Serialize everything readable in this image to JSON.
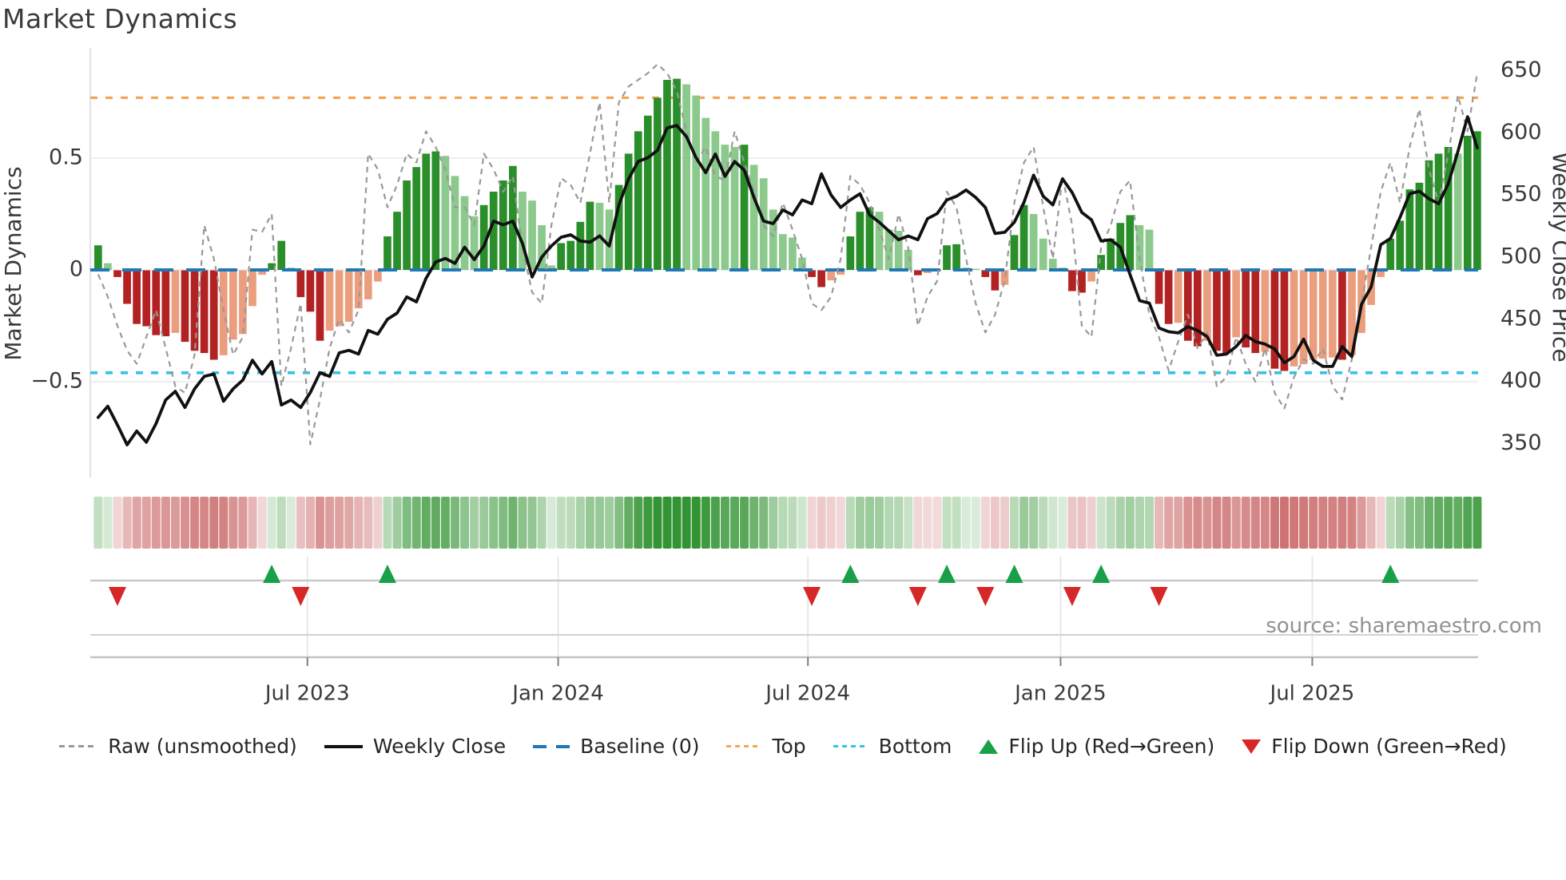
{
  "header": {
    "title": "Market Dynamics"
  },
  "chart": {
    "source": "source: sharemaestro.com",
    "left_axis": {
      "label": "Market Dynamics",
      "ticks": [
        {
          "label": "0.5",
          "value": 0.5
        },
        {
          "label": "0",
          "value": 0
        },
        {
          "label": "−0.5",
          "value": -0.5
        }
      ],
      "range": [
        -0.95,
        0.99
      ]
    },
    "right_axis": {
      "label": "Weekly Close Price",
      "ticks": [
        {
          "label": "650",
          "value": 650
        },
        {
          "label": "600",
          "value": 600
        },
        {
          "label": "550",
          "value": 550
        },
        {
          "label": "500",
          "value": 500
        },
        {
          "label": "450",
          "value": 450
        },
        {
          "label": "400",
          "value": 400
        },
        {
          "label": "350",
          "value": 350
        }
      ],
      "range": [
        333,
        661
      ]
    },
    "x_axis": {
      "ticks": [
        {
          "label": "Jul 2023",
          "week": 22.1
        },
        {
          "label": "Jan 2024",
          "week": 48.1
        },
        {
          "label": "Jul 2024",
          "week": 74.0
        },
        {
          "label": "Jan 2025",
          "week": 100.2
        },
        {
          "label": "Jul 2025",
          "week": 126.3
        }
      ]
    },
    "ref_lines": {
      "baseline": {
        "value": 0,
        "color": "#1f77b4"
      },
      "top": {
        "value": 0.77,
        "color": "#f2a65a"
      },
      "bottom": {
        "value": -0.46,
        "color": "#35c2e6"
      }
    },
    "palette": {
      "bar_up_strong": "#2a8f2a",
      "bar_up_soft": "#8cc98c",
      "bar_down_strong": "#b22222",
      "bar_down_soft": "#eb9e7e",
      "price": "#111111",
      "raw": "#999999",
      "flip_up": "#18a048",
      "flip_down": "#d62828",
      "heat_pos_rgb": "34,139,34",
      "heat_neg_rgb": "178,34,34",
      "grid": "#e9e9f0",
      "panel_line": "#c9c9c9",
      "tick_text": "#3a3a3a"
    }
  },
  "chart_data": {
    "type": "bar+line",
    "title": "Market Dynamics",
    "weeks": 144,
    "ylabel_left": "Market Dynamics",
    "ylabel_right": "Weekly Close Price",
    "grid": true,
    "legend_position": "bottom",
    "series": [
      {
        "name": "Market Dynamics (smoothed bars)",
        "values": [
          0.11,
          0.03,
          -0.03,
          -0.15,
          -0.24,
          -0.25,
          -0.29,
          -0.295,
          -0.28,
          -0.32,
          -0.36,
          -0.37,
          -0.4,
          -0.38,
          -0.31,
          -0.285,
          -0.16,
          -0.02,
          0.03,
          0.13,
          0.01,
          -0.12,
          -0.185,
          -0.315,
          -0.27,
          -0.25,
          -0.23,
          -0.17,
          -0.13,
          -0.05,
          0.15,
          0.26,
          0.4,
          0.46,
          0.52,
          0.53,
          0.51,
          0.42,
          0.33,
          0.24,
          0.29,
          0.35,
          0.4,
          0.465,
          0.35,
          0.31,
          0.2,
          0.02,
          0.12,
          0.13,
          0.215,
          0.305,
          0.3,
          0.27,
          0.38,
          0.52,
          0.62,
          0.69,
          0.77,
          0.85,
          0.855,
          0.83,
          0.78,
          0.68,
          0.62,
          0.56,
          0.55,
          0.56,
          0.47,
          0.41,
          0.27,
          0.16,
          0.145,
          0.055,
          -0.03,
          -0.075,
          -0.045,
          -0.02,
          0.15,
          0.26,
          0.28,
          0.26,
          0.18,
          0.175,
          0.09,
          -0.022,
          -0.012,
          -0.005,
          0.11,
          0.115,
          0.01,
          0.005,
          -0.03,
          -0.09,
          -0.065,
          0.156,
          0.29,
          0.25,
          0.14,
          0.05,
          0.01,
          -0.093,
          -0.1,
          -0.05,
          0.067,
          0.14,
          0.21,
          0.245,
          0.2,
          0.18,
          -0.15,
          -0.24,
          -0.235,
          -0.315,
          -0.34,
          -0.315,
          -0.36,
          -0.37,
          -0.3,
          -0.345,
          -0.37,
          -0.365,
          -0.44,
          -0.45,
          -0.43,
          -0.42,
          -0.4,
          -0.395,
          -0.39,
          -0.4,
          -0.38,
          -0.28,
          -0.155,
          -0.03,
          0.14,
          0.22,
          0.36,
          0.39,
          0.49,
          0.52,
          0.55,
          0.52,
          0.6,
          0.62
        ]
      },
      {
        "name": "Raw (unsmoothed)",
        "values": [
          -0.02,
          -0.12,
          -0.25,
          -0.36,
          -0.42,
          -0.3,
          -0.18,
          -0.35,
          -0.52,
          -0.55,
          -0.38,
          0.2,
          0.05,
          -0.18,
          -0.38,
          -0.3,
          0.18,
          0.17,
          0.25,
          -0.52,
          -0.35,
          -0.15,
          -0.78,
          -0.58,
          -0.35,
          -0.22,
          -0.28,
          -0.18,
          0.52,
          0.45,
          0.28,
          0.38,
          0.52,
          0.48,
          0.62,
          0.55,
          0.45,
          0.28,
          0.28,
          0.2,
          0.52,
          0.45,
          0.35,
          0.42,
          0.1,
          -0.1,
          -0.15,
          0.2,
          0.41,
          0.38,
          0.3,
          0.52,
          0.75,
          0.3,
          0.75,
          0.82,
          0.85,
          0.88,
          0.92,
          0.88,
          0.8,
          0.62,
          0.48,
          0.55,
          0.42,
          0.4,
          0.62,
          0.48,
          0.35,
          0.2,
          0.15,
          0.3,
          0.18,
          0.05,
          -0.15,
          -0.18,
          -0.12,
          0.05,
          0.42,
          0.38,
          0.3,
          0.18,
          0.05,
          0.25,
          0.1,
          -0.25,
          -0.12,
          -0.05,
          0.35,
          0.28,
          0.05,
          -0.15,
          -0.28,
          -0.2,
          -0.05,
          0.3,
          0.48,
          0.55,
          0.28,
          0.05,
          0.42,
          0.2,
          -0.25,
          -0.3,
          0.1,
          0.2,
          0.35,
          0.4,
          0.05,
          -0.2,
          -0.3,
          -0.45,
          -0.32,
          -0.2,
          -0.35,
          -0.28,
          -0.52,
          -0.48,
          -0.3,
          -0.42,
          -0.5,
          -0.35,
          -0.55,
          -0.62,
          -0.48,
          -0.4,
          -0.42,
          -0.35,
          -0.52,
          -0.58,
          -0.4,
          -0.15,
          0.1,
          0.35,
          0.48,
          0.3,
          0.55,
          0.72,
          0.45,
          0.3,
          0.52,
          0.78,
          0.62,
          0.88
        ]
      },
      {
        "name": "Weekly Close",
        "values": [
          371,
          380,
          365,
          349,
          360,
          351,
          366,
          385,
          392,
          379,
          394,
          404,
          406,
          384,
          394,
          401,
          417,
          406,
          416,
          381,
          385,
          379,
          391,
          407,
          404,
          423,
          425,
          422,
          441,
          438,
          450,
          455,
          468,
          464,
          483,
          496,
          499,
          495,
          508,
          498,
          509,
          529,
          526,
          529,
          511,
          484,
          500,
          509,
          516,
          518,
          513,
          512,
          517,
          509,
          542,
          563,
          577,
          580,
          586,
          604,
          606,
          597,
          580,
          568,
          583,
          565,
          577,
          570,
          548,
          529,
          527,
          538,
          534,
          546,
          543,
          567,
          550,
          540,
          546,
          551,
          534,
          528,
          521,
          514,
          517,
          514,
          531,
          535,
          546,
          549,
          554,
          548,
          540,
          519,
          520,
          528,
          544,
          566,
          549,
          542,
          563,
          552,
          536,
          530,
          513,
          514,
          508,
          486,
          465,
          463,
          443,
          440,
          439,
          444,
          441,
          436,
          421,
          422,
          428,
          437,
          432,
          430,
          426,
          415,
          420,
          434,
          417,
          412,
          412,
          428,
          420,
          462,
          476,
          510,
          515,
          532,
          551,
          553,
          547,
          543,
          559,
          585,
          613,
          588
        ]
      }
    ],
    "bar_colors": [
      "dg",
      "lg",
      "dr",
      "dr",
      "dr",
      "dr",
      "dr",
      "dr",
      "lr",
      "dr",
      "dr",
      "dr",
      "dr",
      "lr",
      "lr",
      "lr",
      "lr",
      "lr",
      "dg",
      "dg",
      "lg",
      "dr",
      "dr",
      "dr",
      "lr",
      "lr",
      "lr",
      "lr",
      "lr",
      "lr",
      "dg",
      "dg",
      "dg",
      "dg",
      "dg",
      "dg",
      "lg",
      "lg",
      "lg",
      "lg",
      "dg",
      "dg",
      "dg",
      "dg",
      "lg",
      "lg",
      "lg",
      "lg",
      "dg",
      "dg",
      "dg",
      "dg",
      "lg",
      "lg",
      "dg",
      "dg",
      "dg",
      "dg",
      "dg",
      "dg",
      "dg",
      "lg",
      "lg",
      "lg",
      "lg",
      "lg",
      "lg",
      "dg",
      "lg",
      "lg",
      "lg",
      "lg",
      "lg",
      "lg",
      "dr",
      "dr",
      "lr",
      "lr",
      "dg",
      "dg",
      "dg",
      "lg",
      "lg",
      "lg",
      "lg",
      "dr",
      "lr",
      "lr",
      "dg",
      "dg",
      "lg",
      "lg",
      "dr",
      "dr",
      "lr",
      "dg",
      "dg",
      "lg",
      "lg",
      "lg",
      "lg",
      "dr",
      "dr",
      "lr",
      "dg",
      "dg",
      "dg",
      "dg",
      "lg",
      "lg",
      "dr",
      "dr",
      "lr",
      "dr",
      "dr",
      "lr",
      "dr",
      "dr",
      "lr",
      "dr",
      "dr",
      "lr",
      "dr",
      "dr",
      "lr",
      "lr",
      "lr",
      "lr",
      "lr",
      "dr",
      "lr",
      "lr",
      "lr",
      "lr",
      "dg",
      "dg",
      "dg",
      "dg",
      "dg",
      "dg",
      "dg",
      "lg",
      "dg",
      "dg"
    ],
    "flip_up_weeks": [
      18,
      30,
      78,
      88,
      95,
      104,
      134
    ],
    "flip_down_weeks": [
      2,
      21,
      74,
      85,
      92,
      101,
      110
    ]
  },
  "legend": {
    "items": [
      {
        "label": "Raw (unsmoothed)",
        "swatch": "raw"
      },
      {
        "label": "Weekly Close",
        "swatch": "close"
      },
      {
        "label": "Baseline (0)",
        "swatch": "baseline"
      },
      {
        "label": "Top",
        "swatch": "top"
      },
      {
        "label": "Bottom",
        "swatch": "bottom"
      },
      {
        "label": "Flip Up (Red→Green)",
        "swatch": "flip-up"
      },
      {
        "label": "Flip Down (Green→Red)",
        "swatch": "flip-down"
      }
    ]
  }
}
